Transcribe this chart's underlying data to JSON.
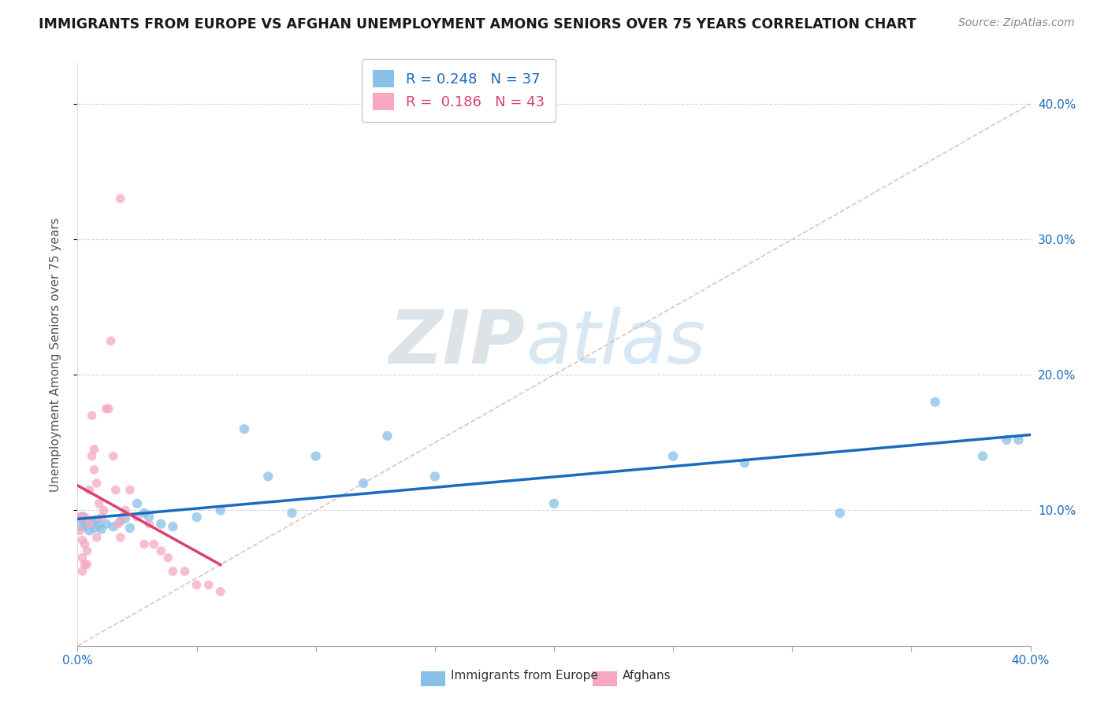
{
  "title": "IMMIGRANTS FROM EUROPE VS AFGHAN UNEMPLOYMENT AMONG SENIORS OVER 75 YEARS CORRELATION CHART",
  "source": "Source: ZipAtlas.com",
  "ylabel": "Unemployment Among Seniors over 75 years",
  "xlim": [
    0.0,
    0.4
  ],
  "ylim": [
    0.0,
    0.43
  ],
  "series1_name": "Immigrants from Europe",
  "series1_R": 0.248,
  "series1_N": 37,
  "series1_color": "#89C0E8",
  "series1_line_color": "#1A6BBF",
  "series2_name": "Afghans",
  "series2_R": 0.186,
  "series2_N": 43,
  "series2_color": "#F5A8C0",
  "series2_line_color": "#D94070",
  "bg_color": "#FFFFFF",
  "grid_color": "#CCCCCC",
  "watermark": "ZIPatlas",
  "watermark_color_zip": "#C5D8EE",
  "watermark_color_atlas": "#A8C8E8",
  "title_color": "#1A1A1A",
  "axis_label_color": "#555555",
  "blue_text_color": "#1A6BBF",
  "pink_text_color": "#D94070",
  "blue_x": [
    0.001,
    0.002,
    0.003,
    0.004,
    0.005,
    0.006,
    0.007,
    0.008,
    0.009,
    0.01,
    0.012,
    0.015,
    0.018,
    0.02,
    0.022,
    0.025,
    0.028,
    0.03,
    0.035,
    0.04,
    0.05,
    0.06,
    0.07,
    0.08,
    0.09,
    0.1,
    0.12,
    0.13,
    0.15,
    0.2,
    0.25,
    0.28,
    0.32,
    0.36,
    0.38,
    0.39,
    0.395
  ],
  "blue_y": [
    0.09,
    0.095,
    0.088,
    0.092,
    0.085,
    0.091,
    0.087,
    0.093,
    0.089,
    0.086,
    0.09,
    0.088,
    0.092,
    0.094,
    0.087,
    0.105,
    0.098,
    0.095,
    0.09,
    0.088,
    0.095,
    0.1,
    0.16,
    0.125,
    0.098,
    0.14,
    0.12,
    0.155,
    0.125,
    0.105,
    0.14,
    0.135,
    0.098,
    0.18,
    0.14,
    0.152,
    0.152
  ],
  "blue_size": [
    200,
    100,
    80,
    80,
    80,
    80,
    80,
    80,
    80,
    80,
    80,
    80,
    80,
    80,
    80,
    80,
    80,
    80,
    80,
    80,
    80,
    80,
    80,
    80,
    80,
    80,
    80,
    80,
    80,
    80,
    80,
    80,
    80,
    80,
    80,
    80,
    80
  ],
  "pink_x": [
    0.001,
    0.001,
    0.002,
    0.002,
    0.003,
    0.003,
    0.004,
    0.004,
    0.005,
    0.005,
    0.006,
    0.006,
    0.007,
    0.007,
    0.008,
    0.008,
    0.009,
    0.01,
    0.011,
    0.012,
    0.013,
    0.014,
    0.015,
    0.016,
    0.017,
    0.018,
    0.019,
    0.02,
    0.022,
    0.025,
    0.028,
    0.03,
    0.032,
    0.035,
    0.038,
    0.04,
    0.045,
    0.05,
    0.055,
    0.06,
    0.002,
    0.003,
    0.018
  ],
  "pink_y": [
    0.085,
    0.095,
    0.065,
    0.078,
    0.075,
    0.095,
    0.06,
    0.07,
    0.09,
    0.115,
    0.14,
    0.17,
    0.145,
    0.13,
    0.08,
    0.12,
    0.105,
    0.095,
    0.1,
    0.175,
    0.175,
    0.225,
    0.14,
    0.115,
    0.09,
    0.08,
    0.095,
    0.1,
    0.115,
    0.095,
    0.075,
    0.09,
    0.075,
    0.07,
    0.065,
    0.055,
    0.055,
    0.045,
    0.045,
    0.04,
    0.055,
    0.06,
    0.33
  ],
  "ref_line_x": [
    0.0,
    0.4
  ],
  "ref_line_y": [
    0.0,
    0.4
  ],
  "ytick_positions": [
    0.1,
    0.2,
    0.3,
    0.4
  ],
  "ytick_labels": [
    "10.0%",
    "20.0%",
    "30.0%",
    "40.0%"
  ]
}
